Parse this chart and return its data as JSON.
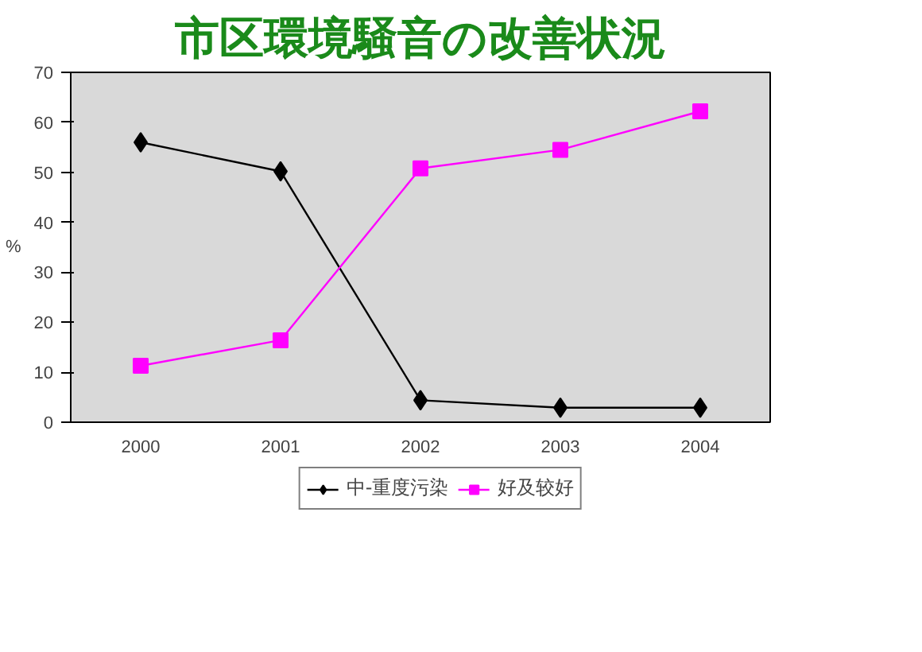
{
  "chart_data": {
    "type": "line",
    "title": "市区環境騒音の改善状況",
    "ylabel": "%",
    "categories": [
      "2000",
      "2001",
      "2002",
      "2003",
      "2004"
    ],
    "series": [
      {
        "name": "中-重度污染",
        "color": "#000000",
        "marker": "diamond",
        "values": [
          56,
          50.2,
          4.4,
          2.9,
          2.9
        ]
      },
      {
        "name": "好及较好",
        "color": "#ff00ff",
        "marker": "square",
        "values": [
          11.3,
          16.4,
          50.8,
          54.5,
          62.2
        ]
      }
    ],
    "ylim": [
      0,
      70
    ],
    "yticks": [
      0,
      10,
      20,
      30,
      40,
      50,
      60,
      70
    ],
    "grid": false,
    "legend": "bottom",
    "line_style": "solid"
  }
}
